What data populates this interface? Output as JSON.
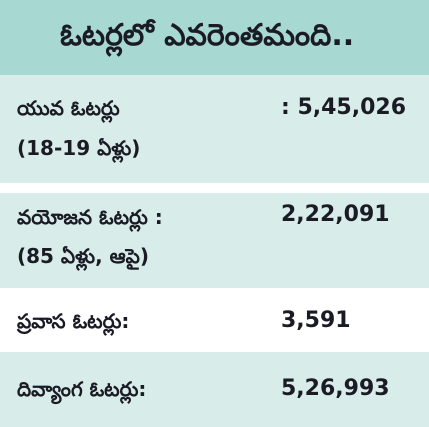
{
  "title": "ఓటర్లలో ఎవరెంతమంది..",
  "rows": [
    {
      "label_line1": "యువ ఓటర్లు",
      "label_line2": "(18-19 ఏళ్లు)",
      "value": ": 5,45,026"
    },
    {
      "label_line1": "వయోజన ఓటర్లు :",
      "label_line2": "(85 ఏళ్లు, ఆపై)",
      "value": "2,22,091"
    },
    {
      "label_line1": "ప్రవాస ఓటర్లు:",
      "value": "3,591"
    },
    {
      "label_line1": "దివ్యాంగ ఓటర్లు:",
      "value": "5,26,993"
    }
  ],
  "colors": {
    "title_background": "#a7d8d1",
    "shaded_row": "#d8ede9",
    "plain_row": "#ffffff",
    "text": "#1b1b26"
  }
}
